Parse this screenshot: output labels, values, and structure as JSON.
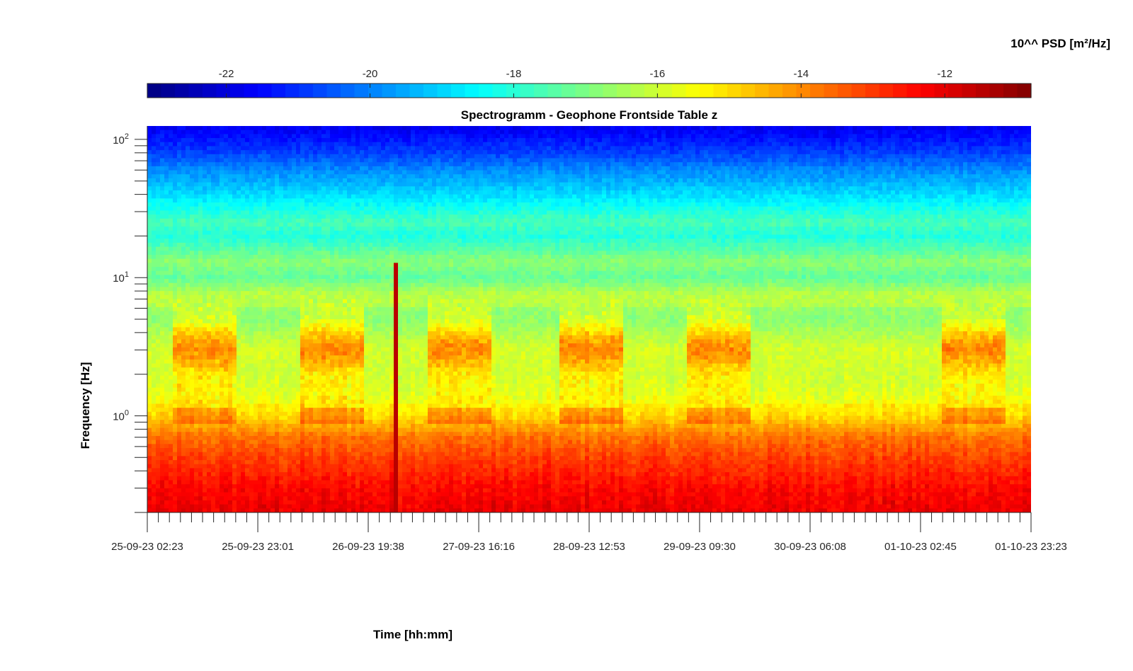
{
  "chart_data": {
    "type": "heatmap",
    "title": "Spectrogramm - Geophone Frontside Table z",
    "xlabel": "Time [hh:mm]",
    "ylabel": "Frequency [Hz]",
    "colorbar_label": "10^^ PSD [m²/Hz]",
    "colormap": "jet",
    "color_range": [
      -23.1,
      -10.8
    ],
    "colorbar_ticks": [
      "-22",
      "-20",
      "-18",
      "-16",
      "-14",
      "-12"
    ],
    "colorbar_tick_values": [
      -22,
      -20,
      -18,
      -16,
      -14,
      -12
    ],
    "x_ticks": [
      "25-09-23 02:23",
      "25-09-23 23:01",
      "26-09-23 19:38",
      "27-09-23 16:16",
      "28-09-23 12:53",
      "29-09-23 09:30",
      "30-09-23 06:08",
      "01-10-23 02:45",
      "01-10-23 23:23"
    ],
    "x_range": [
      "25-09-23 02:23",
      "01-10-23 23:23"
    ],
    "y_scale": "log",
    "y_range": [
      0.2,
      125
    ],
    "y_ticks": [
      "10^0",
      "10^1",
      "10^2"
    ],
    "y_tick_values": [
      1,
      10,
      100
    ],
    "frequency_profile": [
      {
        "freq": 0.2,
        "log10_psd": -12.1
      },
      {
        "freq": 0.3,
        "log10_psd": -12.4
      },
      {
        "freq": 0.5,
        "log10_psd": -13.1
      },
      {
        "freq": 0.7,
        "log10_psd": -13.7
      },
      {
        "freq": 1.0,
        "log10_psd": -15.0
      },
      {
        "freq": 1.5,
        "log10_psd": -15.5
      },
      {
        "freq": 2.0,
        "log10_psd": -15.7
      },
      {
        "freq": 3.0,
        "log10_psd": -15.6
      },
      {
        "freq": 5.0,
        "log10_psd": -16.5
      },
      {
        "freq": 7.5,
        "log10_psd": -16.2
      },
      {
        "freq": 10,
        "log10_psd": -17.3
      },
      {
        "freq": 13,
        "log10_psd": -16.8
      },
      {
        "freq": 20,
        "log10_psd": -18.1
      },
      {
        "freq": 25,
        "log10_psd": -17.6
      },
      {
        "freq": 40,
        "log10_psd": -18.9
      },
      {
        "freq": 60,
        "log10_psd": -19.9
      },
      {
        "freq": 80,
        "log10_psd": -20.8
      },
      {
        "freq": 125,
        "log10_psd": -21.8
      }
    ],
    "activity_periods": [
      {
        "start": "25-09-23 07:00",
        "end": "25-09-23 19:00"
      },
      {
        "start": "26-09-23 07:00",
        "end": "26-09-23 19:00"
      },
      {
        "start": "27-09-23 07:00",
        "end": "27-09-23 19:00"
      },
      {
        "start": "28-09-23 07:00",
        "end": "28-09-23 19:00"
      },
      {
        "start": "29-09-23 07:00",
        "end": "29-09-23 19:00"
      },
      {
        "start": "01-10-23 07:00",
        "end": "01-10-23 19:00"
      }
    ],
    "transient_events": [
      {
        "time": "27-09-23 01:00",
        "log10_psd": -11.5
      }
    ]
  }
}
